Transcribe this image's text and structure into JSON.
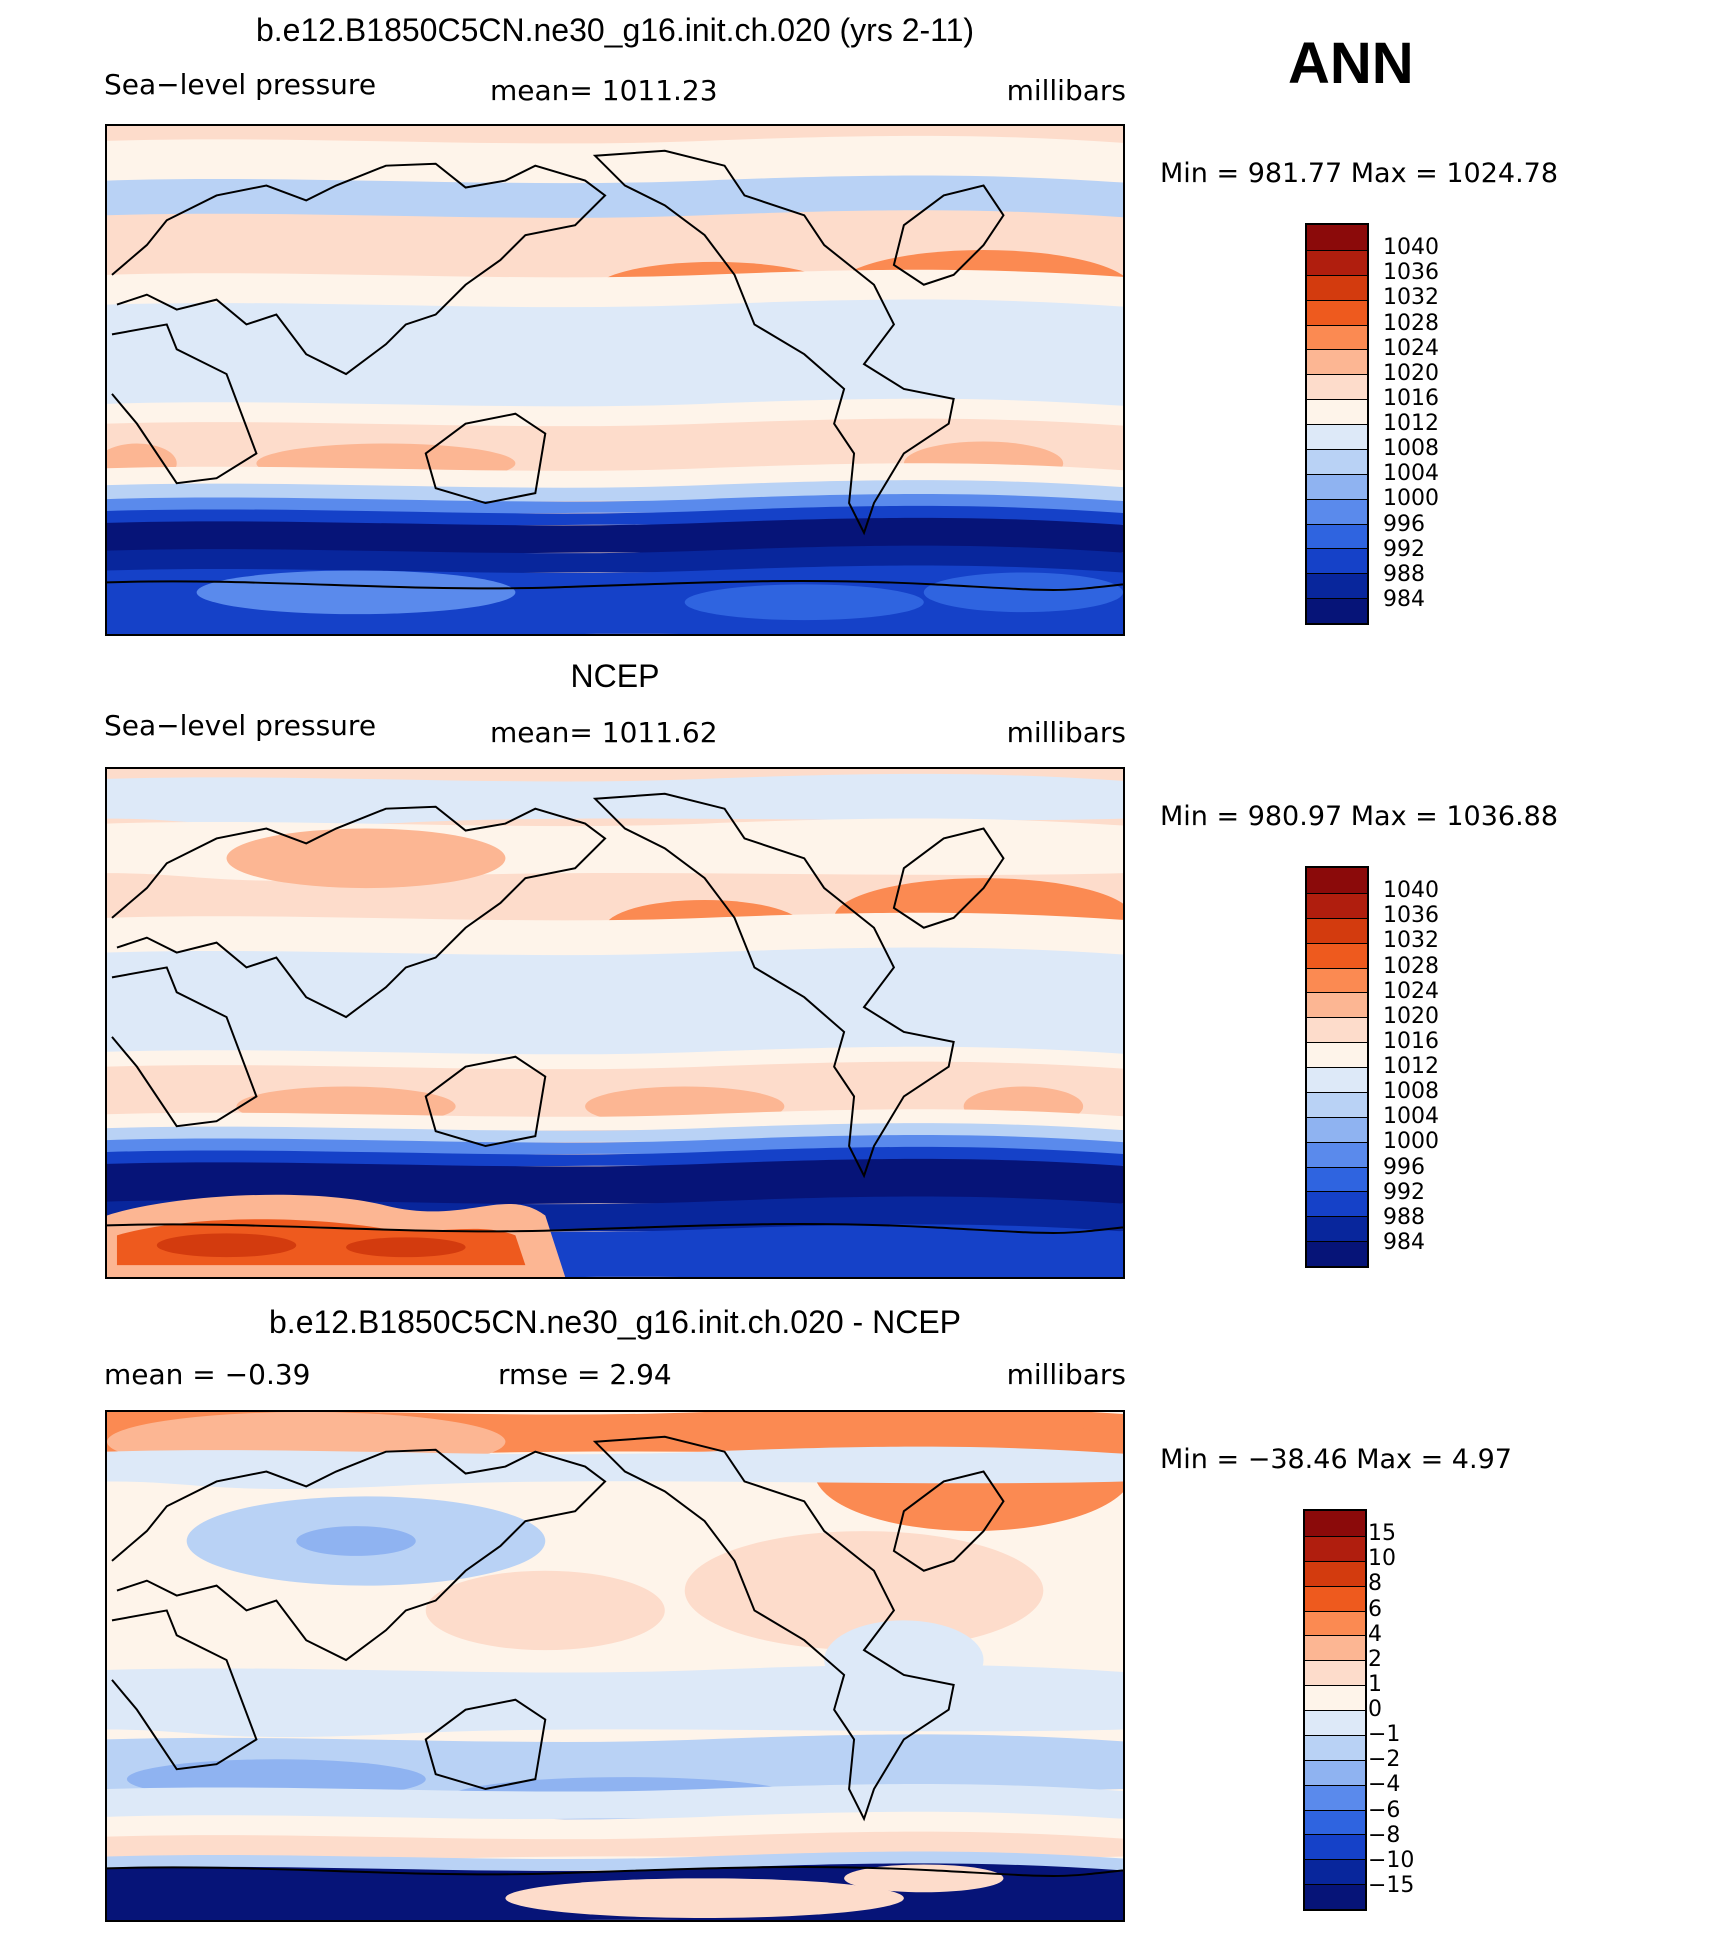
{
  "season": "ANN",
  "panels": [
    {
      "title": "b.e12.B1850C5CN.ne30_g16.init.ch.020 (yrs 2-11)",
      "left_label": "Sea−level pressure",
      "center_label": "mean=  1011.23",
      "units": "millibars",
      "minmax": "Min  =  981.77  Max  =  1024.78",
      "colorbar": {
        "labels": [
          "1040",
          "1036",
          "1032",
          "1028",
          "1024",
          "1020",
          "1016",
          "1012",
          "1008",
          "1004",
          "1000",
          "996",
          "992",
          "988",
          "984"
        ],
        "colors": [
          "#8b0a0a",
          "#b01e0e",
          "#d33b0e",
          "#ee5a1e",
          "#fb8a52",
          "#fcb693",
          "#fddccb",
          "#fef4ea",
          "#dde9f8",
          "#b9d2f5",
          "#8fb3f1",
          "#5a8aec",
          "#2f64e0",
          "#1541c8",
          "#08269c",
          "#061478"
        ]
      },
      "field": "model_slp"
    },
    {
      "title": "NCEP",
      "left_label": "Sea−level pressure",
      "center_label": "mean=  1011.62",
      "units": "millibars",
      "minmax": "Min  =  980.97  Max  =  1036.88",
      "colorbar": {
        "labels": [
          "1040",
          "1036",
          "1032",
          "1028",
          "1024",
          "1020",
          "1016",
          "1012",
          "1008",
          "1004",
          "1000",
          "996",
          "992",
          "988",
          "984"
        ],
        "colors": [
          "#8b0a0a",
          "#b01e0e",
          "#d33b0e",
          "#ee5a1e",
          "#fb8a52",
          "#fcb693",
          "#fddccb",
          "#fef4ea",
          "#dde9f8",
          "#b9d2f5",
          "#8fb3f1",
          "#5a8aec",
          "#2f64e0",
          "#1541c8",
          "#08269c",
          "#061478"
        ]
      },
      "field": "ncep_slp"
    },
    {
      "title": "b.e12.B1850C5CN.ne30_g16.init.ch.020 - NCEP",
      "left_label": "mean  =    −0.39",
      "center_label": "rmse  =     2.94",
      "units": "millibars",
      "minmax": "Min  =  −38.46  Max  =      4.97",
      "colorbar": {
        "labels": [
          "15",
          "10",
          "8",
          "6",
          "4",
          "2",
          "1",
          "0",
          "−1",
          "−2",
          "−4",
          "−6",
          "−8",
          "−10",
          "−15"
        ],
        "colors": [
          "#8b0a0a",
          "#b01e0e",
          "#d33b0e",
          "#ee5a1e",
          "#fb8a52",
          "#fcb693",
          "#fddccb",
          "#fef4ea",
          "#dde9f8",
          "#b9d2f5",
          "#8fb3f1",
          "#5a8aec",
          "#2f64e0",
          "#1541c8",
          "#08269c",
          "#061478"
        ]
      },
      "field": "difference"
    }
  ]
}
